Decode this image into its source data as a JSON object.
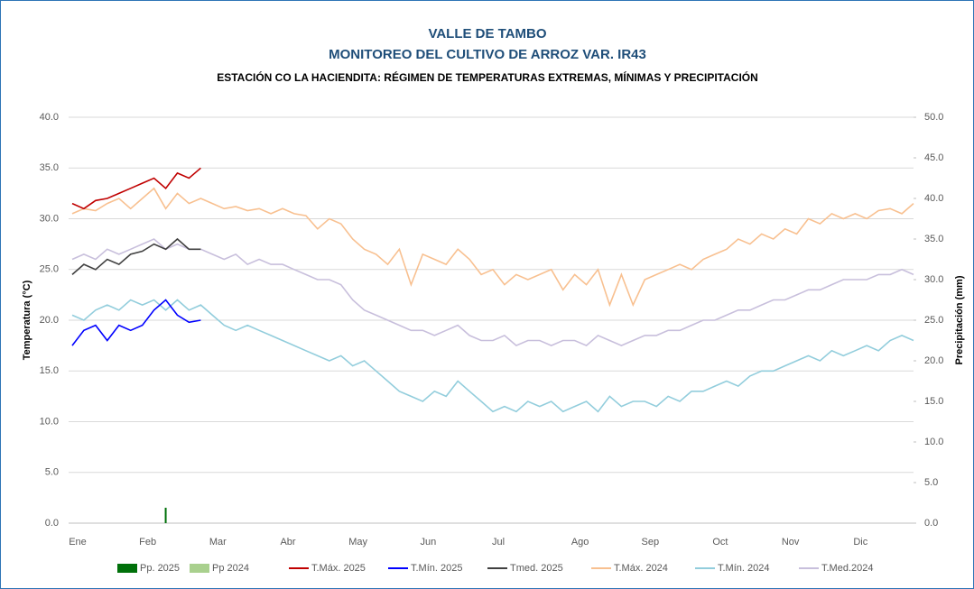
{
  "chart_data": {
    "type": "line",
    "title": "VALLE DE TAMBO",
    "subtitle": "MONITOREO DEL CULTIVO DE ARROZ VAR. IR43",
    "chart_subtitle": "ESTACIÓN CO LA HACIENDITA: RÉGIMEN DE TEMPERATURAS EXTREMAS, MÍNIMAS Y PRECIPITACIÓN",
    "y_label": "Temperatura (°C)",
    "y2_label": "Precipitación (mm)",
    "grid": true,
    "categories": [
      "Ene",
      null,
      null,
      null,
      null,
      null,
      "Feb",
      null,
      null,
      null,
      null,
      null,
      "Mar",
      null,
      null,
      null,
      null,
      null,
      "Abr",
      null,
      null,
      null,
      null,
      null,
      "May",
      null,
      null,
      null,
      null,
      null,
      "Jun",
      null,
      null,
      null,
      null,
      null,
      "Jul",
      null,
      null,
      null,
      null,
      null,
      null,
      "Ago",
      null,
      null,
      null,
      null,
      null,
      "Sep",
      null,
      null,
      null,
      null,
      null,
      "Oct",
      null,
      null,
      null,
      null,
      null,
      "Nov",
      null,
      null,
      null,
      null,
      null,
      "Dic",
      null,
      null,
      null,
      null,
      null
    ],
    "ylim": [
      0,
      40
    ],
    "yticks": [
      {
        "value": 0,
        "label": "0.0"
      },
      {
        "value": 5,
        "label": "5.0"
      },
      {
        "value": 10,
        "label": "10.0"
      },
      {
        "value": 15,
        "label": "15.0"
      },
      {
        "value": 20,
        "label": "20.0"
      },
      {
        "value": 25,
        "label": "25.0"
      },
      {
        "value": 30,
        "label": "30.0"
      },
      {
        "value": 35,
        "label": "35.0"
      },
      {
        "value": 40,
        "label": "40.0"
      }
    ],
    "y2lim": [
      0,
      50
    ],
    "y2ticks": [
      {
        "value": 0,
        "label": "0.0"
      },
      {
        "value": 5,
        "label": "5.0"
      },
      {
        "value": 10,
        "label": "10.0"
      },
      {
        "value": 15,
        "label": "15.0"
      },
      {
        "value": 20,
        "label": "20.0"
      },
      {
        "value": 25,
        "label": "25.0"
      },
      {
        "value": 30,
        "label": "30.0"
      },
      {
        "value": 35,
        "label": "35.0"
      },
      {
        "value": 40,
        "label": "40.0"
      },
      {
        "value": 45,
        "label": "45.0"
      },
      {
        "value": 50,
        "label": "50.0"
      }
    ],
    "series": [
      {
        "name": "Pp. 2025",
        "type": "bar",
        "axis": "y2",
        "color": "#00700a",
        "values": [
          null,
          null,
          null,
          null,
          null,
          null,
          null,
          null,
          1.9,
          null,
          null,
          null,
          null,
          null,
          null,
          null,
          null,
          null,
          null,
          null,
          null,
          null,
          null,
          null,
          null,
          null,
          null,
          null,
          null,
          null,
          null,
          null,
          null,
          null,
          null,
          null,
          null,
          null,
          null,
          null,
          null,
          null,
          null,
          null,
          null,
          null,
          null,
          null,
          null,
          null,
          null,
          null,
          null,
          null,
          null,
          null,
          null,
          null,
          null,
          null,
          null,
          null,
          null,
          null,
          null,
          null,
          null,
          null,
          null,
          null,
          null,
          null,
          null
        ]
      },
      {
        "name": "Pp 2024",
        "type": "bar",
        "axis": "y2",
        "color": "#a9d08e",
        "values": [
          0,
          0,
          0,
          0,
          0,
          0,
          0,
          0,
          0,
          0,
          0,
          0,
          0,
          0,
          0,
          0,
          0,
          0,
          0,
          0,
          0,
          0,
          0,
          0,
          0,
          0,
          0,
          0,
          0,
          0,
          0,
          0,
          0,
          0,
          0,
          0,
          0,
          0,
          0,
          0,
          0,
          0,
          0,
          0,
          0,
          0,
          0,
          0,
          0,
          0,
          0,
          0,
          0,
          0,
          0,
          0,
          0,
          0,
          0,
          0,
          0,
          0,
          0,
          0,
          0,
          0,
          0,
          0,
          0,
          0,
          0,
          0,
          0
        ]
      },
      {
        "name": "T.Máx. 2025",
        "color": "#c00000",
        "values": [
          31.5,
          31,
          31.8,
          32,
          32.5,
          33,
          33.5,
          34,
          33,
          34.5,
          34,
          35,
          null,
          null,
          null,
          null,
          null,
          null,
          null,
          null,
          null,
          null,
          null,
          null,
          null,
          null,
          null,
          null,
          null,
          null,
          null,
          null,
          null,
          null,
          null,
          null,
          null,
          null,
          null,
          null,
          null,
          null,
          null,
          null,
          null,
          null,
          null,
          null,
          null,
          null,
          null,
          null,
          null,
          null,
          null,
          null,
          null,
          null,
          null,
          null,
          null,
          null,
          null,
          null,
          null,
          null,
          null,
          null,
          null,
          null,
          null,
          null,
          null
        ]
      },
      {
        "name": "T.Mín. 2025",
        "color": "#0000ff",
        "values": [
          17.5,
          19,
          19.5,
          18,
          19.5,
          19,
          19.5,
          21,
          22,
          20.5,
          19.8,
          20,
          null,
          null,
          null,
          null,
          null,
          null,
          null,
          null,
          null,
          null,
          null,
          null,
          null,
          null,
          null,
          null,
          null,
          null,
          null,
          null,
          null,
          null,
          null,
          null,
          null,
          null,
          null,
          null,
          null,
          null,
          null,
          null,
          null,
          null,
          null,
          null,
          null,
          null,
          null,
          null,
          null,
          null,
          null,
          null,
          null,
          null,
          null,
          null,
          null,
          null,
          null,
          null,
          null,
          null,
          null,
          null,
          null,
          null,
          null,
          null,
          null
        ]
      },
      {
        "name": "Tmed. 2025",
        "color": "#404040",
        "values": [
          24.5,
          25.5,
          25,
          26,
          25.5,
          26.5,
          26.8,
          27.5,
          27,
          28,
          27,
          27,
          null,
          null,
          null,
          null,
          null,
          null,
          null,
          null,
          null,
          null,
          null,
          null,
          null,
          null,
          null,
          null,
          null,
          null,
          null,
          null,
          null,
          null,
          null,
          null,
          null,
          null,
          null,
          null,
          null,
          null,
          null,
          null,
          null,
          null,
          null,
          null,
          null,
          null,
          null,
          null,
          null,
          null,
          null,
          null,
          null,
          null,
          null,
          null,
          null,
          null,
          null,
          null,
          null,
          null,
          null,
          null,
          null,
          null,
          null,
          null,
          null
        ]
      },
      {
        "name": "T.Máx. 2024",
        "color": "#f8c090",
        "values": [
          30.5,
          31,
          30.8,
          31.5,
          32,
          31,
          32,
          33,
          31,
          32.5,
          31.5,
          32,
          31.5,
          31,
          31.2,
          30.8,
          31,
          30.5,
          31,
          30.5,
          30.3,
          29,
          30,
          29.5,
          28,
          27,
          26.5,
          25.5,
          27,
          23.5,
          26.5,
          26,
          25.5,
          27,
          26,
          24.5,
          25,
          23.5,
          24.5,
          24,
          24.5,
          25,
          23,
          24.5,
          23.5,
          25,
          21.5,
          24.5,
          21.5,
          24,
          24.5,
          25,
          25.5,
          25,
          26,
          26.5,
          27,
          28,
          27.5,
          28.5,
          28,
          29,
          28.5,
          30,
          29.5,
          30.5,
          30,
          30.5,
          30,
          30.8,
          31,
          30.5,
          31.5
        ]
      },
      {
        "name": "T.Mín. 2024",
        "color": "#92cddc",
        "values": [
          20.5,
          20,
          21,
          21.5,
          21,
          22,
          21.5,
          22,
          21,
          22,
          21,
          21.5,
          20.5,
          19.5,
          19,
          19.5,
          19,
          18.5,
          18,
          17.5,
          17,
          16.5,
          16,
          16.5,
          15.5,
          16,
          15,
          14,
          13,
          12.5,
          12,
          13,
          12.5,
          14,
          13,
          12,
          11,
          11.5,
          11,
          12,
          11.5,
          12,
          11,
          11.5,
          12,
          11,
          12.5,
          11.5,
          12,
          12,
          11.5,
          12.5,
          12,
          13,
          13,
          13.5,
          14,
          13.5,
          14.5,
          15,
          15,
          15.5,
          16,
          16.5,
          16,
          17,
          16.5,
          17,
          17.5,
          17,
          18,
          18.5,
          18
        ]
      },
      {
        "name": "T.Med.2024",
        "color": "#c8bfdc",
        "values": [
          26,
          26.5,
          26,
          27,
          26.5,
          27,
          27.5,
          28,
          27,
          27.5,
          27,
          27,
          26.5,
          26,
          26.5,
          25.5,
          26,
          25.5,
          25.5,
          25,
          24.5,
          24,
          24,
          23.5,
          22,
          21,
          20.5,
          20,
          19.5,
          19,
          19,
          18.5,
          19,
          19.5,
          18.5,
          18,
          18,
          18.5,
          17.5,
          18,
          18,
          17.5,
          18,
          18,
          17.5,
          18.5,
          18,
          17.5,
          18,
          18.5,
          18.5,
          19,
          19,
          19.5,
          20,
          20,
          20.5,
          21,
          21,
          21.5,
          22,
          22,
          22.5,
          23,
          23,
          23.5,
          24,
          24,
          24,
          24.5,
          24.5,
          25,
          24.5
        ]
      }
    ]
  }
}
